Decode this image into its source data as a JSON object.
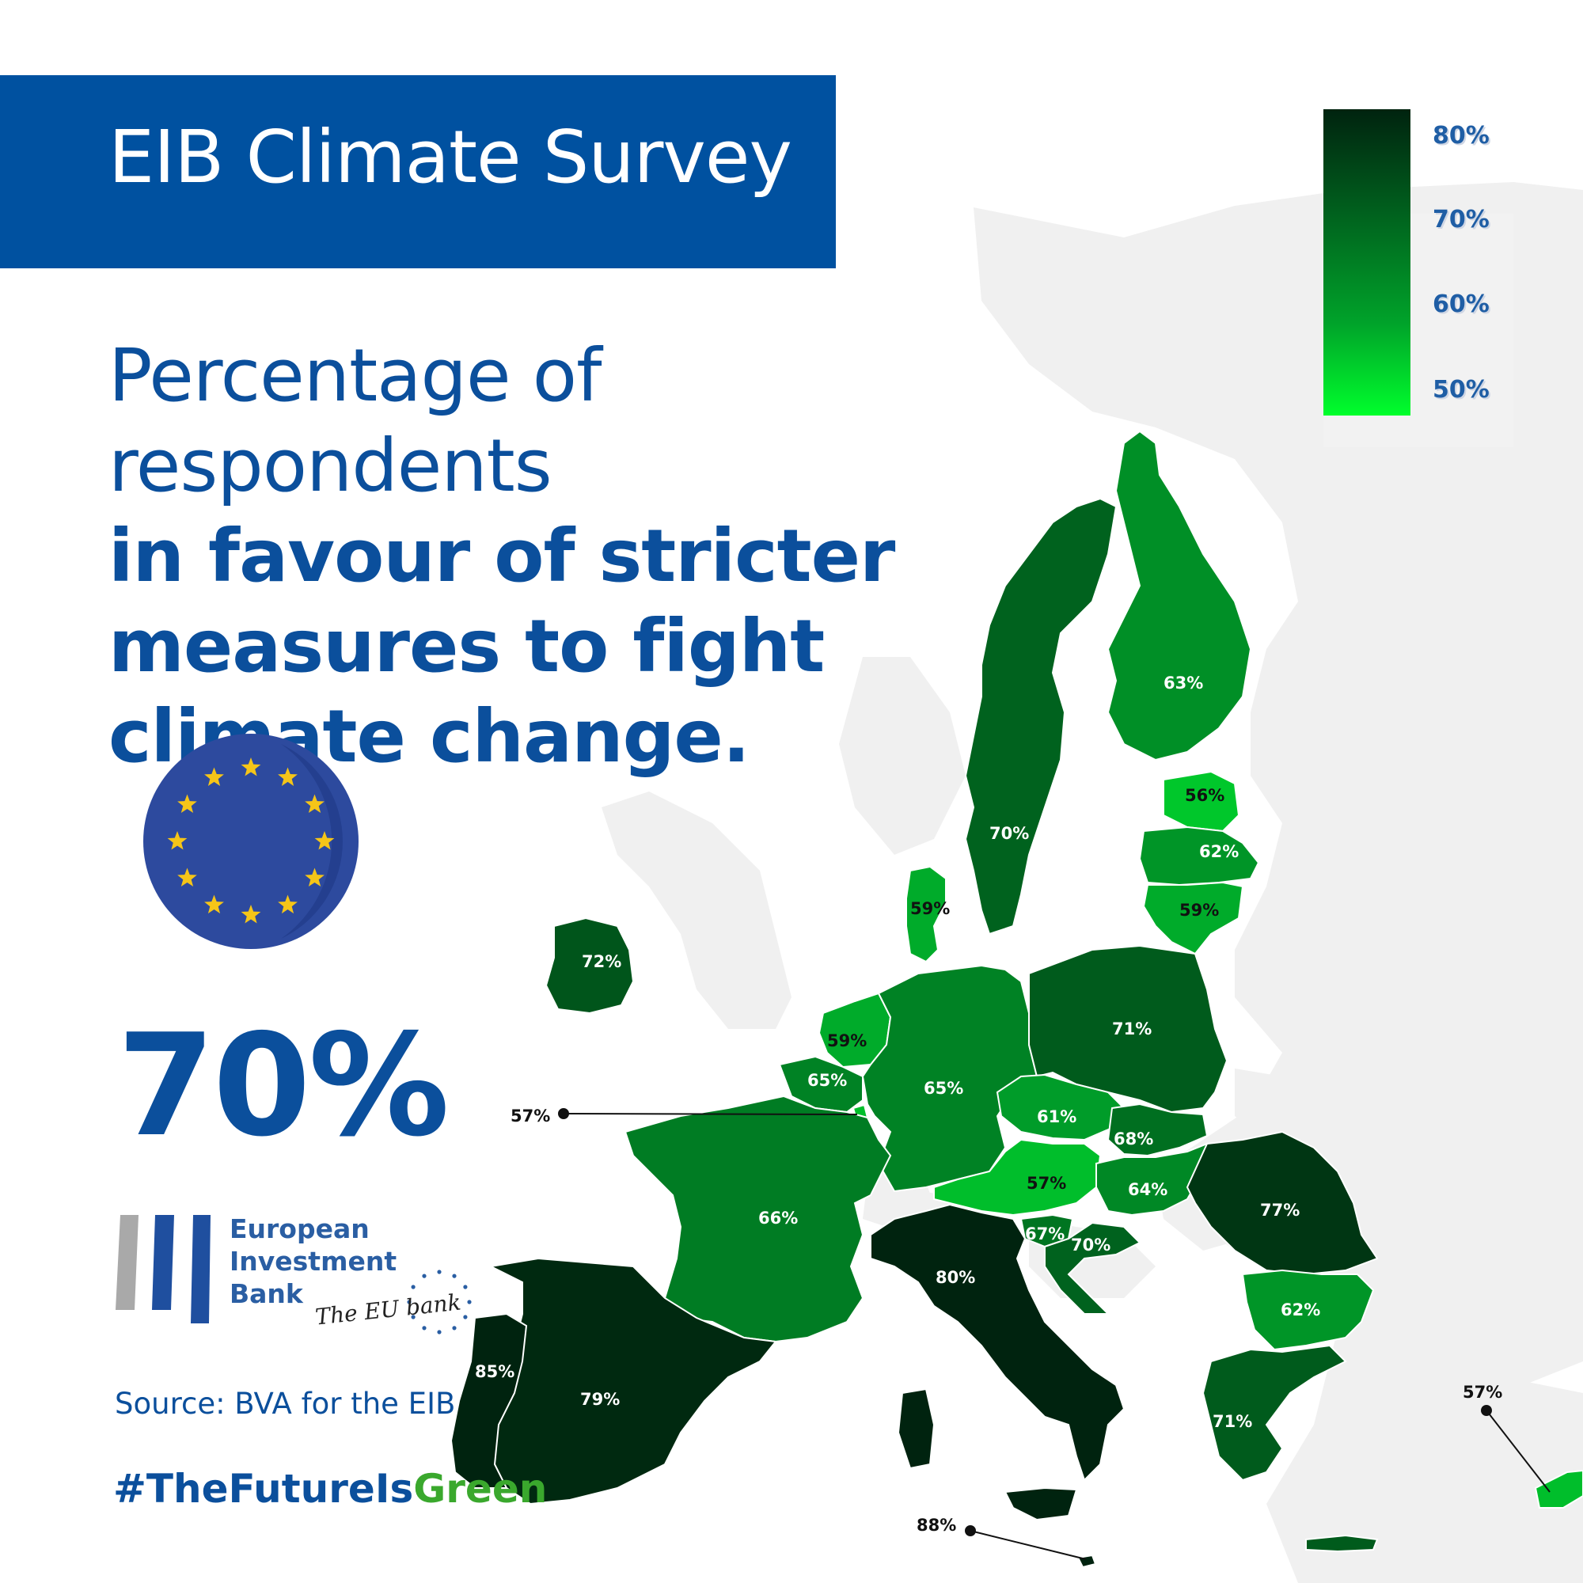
{
  "header": {
    "title": "EIB Climate Survey"
  },
  "headline": {
    "line1": "Percentage of respondents",
    "line2": "in favour of stricter",
    "line3": "measures to fight",
    "line4": "climate change."
  },
  "eu_average": "70%",
  "logo": {
    "line1": "European",
    "line2": "Investment",
    "line3": "Bank",
    "tagline": "The EU bank"
  },
  "source": "Source: BVA for the EIB",
  "hashtag": {
    "part1": "#TheFutureIs",
    "part2": "Green"
  },
  "legend": {
    "ticks": [
      "80%",
      "70%",
      "60%",
      "50%"
    ],
    "min": 50,
    "max": 80
  },
  "map_data": {
    "type": "choropleth",
    "countries": [
      {
        "id": "sweden",
        "value": 70,
        "label": "70%"
      },
      {
        "id": "finland",
        "value": 63,
        "label": "63%"
      },
      {
        "id": "estonia",
        "value": 56,
        "label": "56%"
      },
      {
        "id": "latvia",
        "value": 62,
        "label": "62%"
      },
      {
        "id": "lithuania",
        "value": 59,
        "label": "59%"
      },
      {
        "id": "denmark",
        "value": 59,
        "label": "59%"
      },
      {
        "id": "ireland",
        "value": 72,
        "label": "72%"
      },
      {
        "id": "netherlands",
        "value": 59,
        "label": "59%"
      },
      {
        "id": "belgium",
        "value": 65,
        "label": "65%"
      },
      {
        "id": "luxembourg",
        "value": 57,
        "label": "57%"
      },
      {
        "id": "germany",
        "value": 65,
        "label": "65%"
      },
      {
        "id": "poland",
        "value": 71,
        "label": "71%"
      },
      {
        "id": "czechia",
        "value": 61,
        "label": "61%"
      },
      {
        "id": "slovakia",
        "value": 68,
        "label": "68%"
      },
      {
        "id": "austria",
        "value": 57,
        "label": "57%"
      },
      {
        "id": "hungary",
        "value": 64,
        "label": "64%"
      },
      {
        "id": "romania",
        "value": 77,
        "label": "77%"
      },
      {
        "id": "france",
        "value": 66,
        "label": "66%"
      },
      {
        "id": "slovenia",
        "value": 67,
        "label": "67%"
      },
      {
        "id": "croatia",
        "value": 70,
        "label": "70%"
      },
      {
        "id": "italy",
        "value": 80,
        "label": "80%"
      },
      {
        "id": "bulgaria",
        "value": 62,
        "label": "62%"
      },
      {
        "id": "portugal",
        "value": 85,
        "label": "85%"
      },
      {
        "id": "spain",
        "value": 79,
        "label": "79%"
      },
      {
        "id": "greece",
        "value": 71,
        "label": "71%"
      },
      {
        "id": "malta",
        "value": 88,
        "label": "88%"
      },
      {
        "id": "cyprus",
        "value": 57,
        "label": "57%"
      }
    ]
  },
  "colors": {
    "banner": "#0051a0",
    "headline": "#0b4f9c",
    "eu_flag": "#2d4a9e",
    "eu_star": "#f5c518",
    "background_land": "#f0f0f0"
  }
}
